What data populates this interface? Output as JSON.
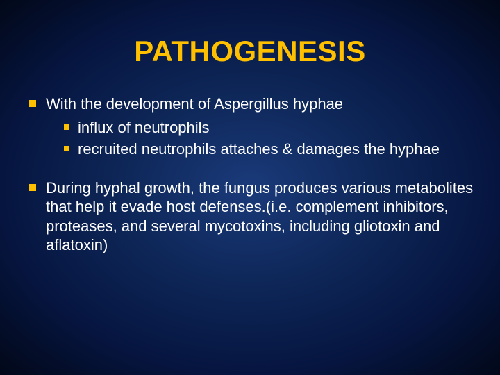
{
  "slide": {
    "title": "PATHOGENESIS",
    "title_color": "#ffc000",
    "text_color": "#ffffff",
    "bullet_color": "#ffc000",
    "background_gradient": [
      "#1a3a7a",
      "#0d2555",
      "#061540",
      "#020818"
    ],
    "title_fontsize": 42,
    "body_fontsize": 22,
    "blocks": [
      {
        "text": "With the development of Aspergillus hyphae",
        "children": [
          {
            "text": "influx of neutrophils"
          },
          {
            "text": "recruited neutrophils attaches & damages the hyphae"
          }
        ]
      },
      {
        "text": "During hyphal growth, the fungus produces various metabolites that help it evade host defenses.(i.e. complement inhibitors, proteases, and several mycotoxins, including gliotoxin and aflatoxin)",
        "children": []
      }
    ]
  }
}
